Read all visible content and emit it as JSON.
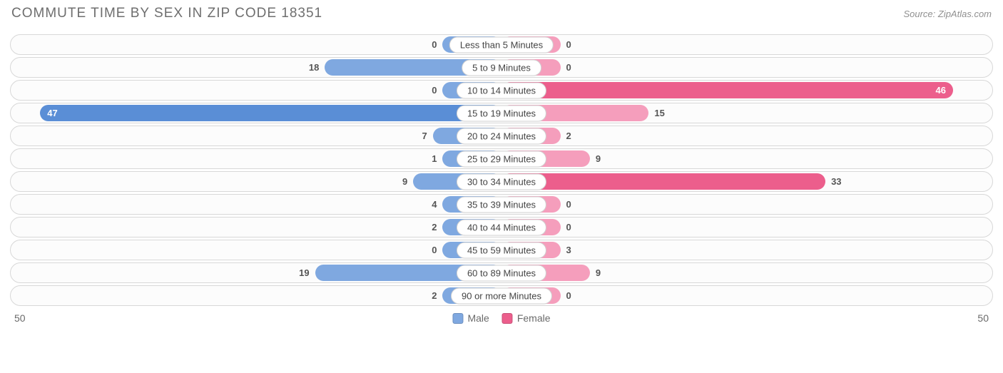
{
  "title": "COMMUTE TIME BY SEX IN ZIP CODE 18351",
  "source": "Source: ZipAtlas.com",
  "colors": {
    "male_base": "#7fa8e0",
    "male_highlight": "#5a8ed6",
    "female_base": "#f59ebc",
    "female_highlight": "#ec5e8c",
    "track_border": "#d8d8d8",
    "track_bg": "#fcfcfc",
    "text": "#6e6e6e"
  },
  "axis": {
    "left": "50",
    "right": "50",
    "max": 50
  },
  "min_bar_pct": 12,
  "legend": [
    {
      "label": "Male",
      "color": "#7fa8e0"
    },
    {
      "label": "Female",
      "color": "#ec5e8c"
    }
  ],
  "rows": [
    {
      "category": "Less than 5 Minutes",
      "male": 0,
      "female": 0,
      "male_hl": false,
      "female_hl": false
    },
    {
      "category": "5 to 9 Minutes",
      "male": 18,
      "female": 0,
      "male_hl": false,
      "female_hl": false
    },
    {
      "category": "10 to 14 Minutes",
      "male": 0,
      "female": 46,
      "male_hl": false,
      "female_hl": true
    },
    {
      "category": "15 to 19 Minutes",
      "male": 47,
      "female": 15,
      "male_hl": true,
      "female_hl": false
    },
    {
      "category": "20 to 24 Minutes",
      "male": 7,
      "female": 2,
      "male_hl": false,
      "female_hl": false
    },
    {
      "category": "25 to 29 Minutes",
      "male": 1,
      "female": 9,
      "male_hl": false,
      "female_hl": false
    },
    {
      "category": "30 to 34 Minutes",
      "male": 9,
      "female": 33,
      "male_hl": false,
      "female_hl": true
    },
    {
      "category": "35 to 39 Minutes",
      "male": 4,
      "female": 0,
      "male_hl": false,
      "female_hl": false
    },
    {
      "category": "40 to 44 Minutes",
      "male": 2,
      "female": 0,
      "male_hl": false,
      "female_hl": false
    },
    {
      "category": "45 to 59 Minutes",
      "male": 0,
      "female": 3,
      "male_hl": false,
      "female_hl": false
    },
    {
      "category": "60 to 89 Minutes",
      "male": 19,
      "female": 9,
      "male_hl": false,
      "female_hl": false
    },
    {
      "category": "90 or more Minutes",
      "male": 2,
      "female": 0,
      "male_hl": false,
      "female_hl": false
    }
  ]
}
